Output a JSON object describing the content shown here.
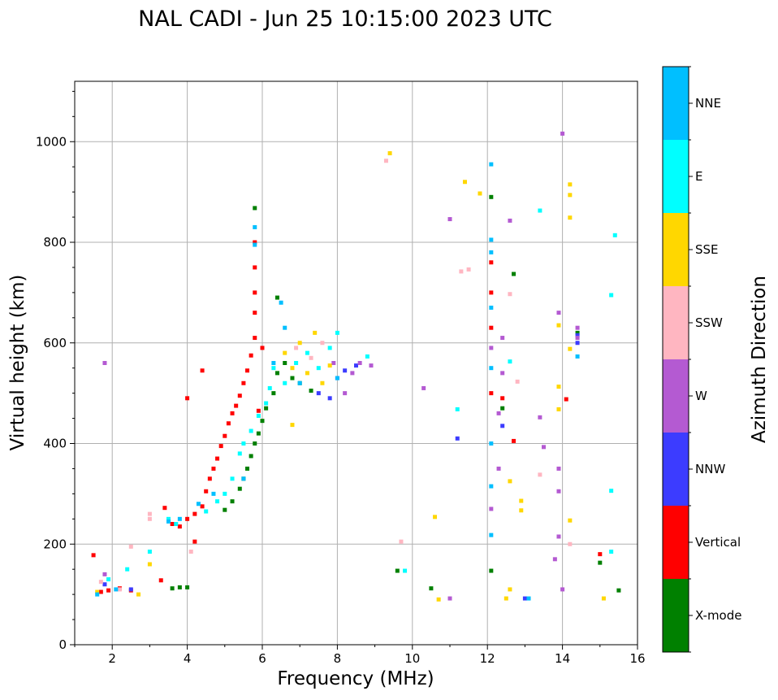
{
  "chart_data": {
    "type": "scatter",
    "title": "NAL CADI - Jun 25 10:15:00 2023 UTC",
    "xlabel": "Frequency (MHz)",
    "ylabel": "Virtual height (km)",
    "xlim": [
      1,
      16
    ],
    "ylim": [
      0,
      1120
    ],
    "x_ticks": [
      2,
      4,
      6,
      8,
      10,
      12,
      14,
      16
    ],
    "x_tick_labels": [
      "2",
      "4",
      "6",
      "8",
      "10",
      "12",
      "14",
      "16"
    ],
    "y_ticks": [
      0,
      200,
      400,
      600,
      800,
      1000
    ],
    "y_tick_labels": [
      "0",
      "200",
      "400",
      "600",
      "800",
      "1000"
    ],
    "grid": true,
    "colorbar": {
      "label": "Azimuth Direction",
      "categories": [
        "X-mode",
        "Vertical",
        "NNW",
        "W",
        "SSW",
        "SSE",
        "E",
        "NNE"
      ],
      "colors": [
        "#008000",
        "#ff0000",
        "#3c3cff",
        "#b45ad2",
        "#ffb6c1",
        "#ffd700",
        "#00ffff",
        "#00bfff"
      ]
    },
    "series": [
      {
        "name": "X-mode",
        "color": "#008000",
        "points": [
          [
            3.6,
            112
          ],
          [
            3.8,
            114
          ],
          [
            4.0,
            114
          ],
          [
            5.0,
            268
          ],
          [
            5.2,
            285
          ],
          [
            5.4,
            310
          ],
          [
            5.5,
            330
          ],
          [
            5.6,
            350
          ],
          [
            5.7,
            375
          ],
          [
            5.8,
            400
          ],
          [
            5.9,
            420
          ],
          [
            6.0,
            445
          ],
          [
            6.1,
            470
          ],
          [
            6.3,
            500
          ],
          [
            6.4,
            540
          ],
          [
            6.6,
            560
          ],
          [
            6.8,
            530
          ],
          [
            7.0,
            520
          ],
          [
            7.3,
            505
          ],
          [
            9.6,
            147
          ],
          [
            10.5,
            112
          ],
          [
            12.1,
            147
          ],
          [
            12.1,
            890
          ],
          [
            12.4,
            470
          ],
          [
            12.7,
            737
          ],
          [
            14.4,
            620
          ],
          [
            15.0,
            163
          ],
          [
            15.5,
            108
          ],
          [
            5.8,
            868
          ],
          [
            6.4,
            690
          ]
        ]
      },
      {
        "name": "Vertical",
        "color": "#ff0000",
        "points": [
          [
            1.5,
            178
          ],
          [
            1.7,
            105
          ],
          [
            1.9,
            108
          ],
          [
            2.2,
            112
          ],
          [
            2.5,
            108
          ],
          [
            3.3,
            128
          ],
          [
            3.4,
            272
          ],
          [
            3.6,
            240
          ],
          [
            3.8,
            235
          ],
          [
            4.0,
            250
          ],
          [
            4.2,
            260
          ],
          [
            4.4,
            275
          ],
          [
            4.5,
            305
          ],
          [
            4.6,
            330
          ],
          [
            4.7,
            350
          ],
          [
            4.8,
            370
          ],
          [
            4.9,
            395
          ],
          [
            5.0,
            415
          ],
          [
            5.1,
            440
          ],
          [
            5.2,
            460
          ],
          [
            5.3,
            475
          ],
          [
            5.4,
            495
          ],
          [
            5.5,
            520
          ],
          [
            5.6,
            545
          ],
          [
            5.7,
            575
          ],
          [
            5.8,
            610
          ],
          [
            5.8,
            660
          ],
          [
            5.8,
            700
          ],
          [
            5.8,
            750
          ],
          [
            5.8,
            800
          ],
          [
            4.0,
            490
          ],
          [
            4.4,
            545
          ],
          [
            6.0,
            590
          ],
          [
            12.1,
            500
          ],
          [
            12.1,
            630
          ],
          [
            12.1,
            700
          ],
          [
            12.1,
            760
          ],
          [
            12.4,
            490
          ],
          [
            12.7,
            405
          ],
          [
            14.1,
            488
          ],
          [
            15.0,
            180
          ],
          [
            4.2,
            205
          ],
          [
            5.9,
            465
          ]
        ]
      },
      {
        "name": "NNW",
        "color": "#3c3cff",
        "points": [
          [
            1.8,
            120
          ],
          [
            2.5,
            110
          ],
          [
            7.5,
            500
          ],
          [
            7.8,
            490
          ],
          [
            8.0,
            530
          ],
          [
            8.2,
            545
          ],
          [
            8.5,
            555
          ],
          [
            11.2,
            410
          ],
          [
            12.4,
            435
          ],
          [
            13.0,
            92
          ],
          [
            14.4,
            615
          ],
          [
            14.4,
            600
          ]
        ]
      },
      {
        "name": "W",
        "color": "#b45ad2",
        "points": [
          [
            1.8,
            140
          ],
          [
            1.8,
            560
          ],
          [
            7.9,
            560
          ],
          [
            8.2,
            500
          ],
          [
            8.4,
            540
          ],
          [
            8.6,
            560
          ],
          [
            8.9,
            555
          ],
          [
            10.3,
            510
          ],
          [
            11.0,
            92
          ],
          [
            11.0,
            846
          ],
          [
            12.1,
            270
          ],
          [
            12.1,
            590
          ],
          [
            12.3,
            350
          ],
          [
            12.3,
            460
          ],
          [
            12.4,
            540
          ],
          [
            12.4,
            610
          ],
          [
            12.6,
            843
          ],
          [
            13.4,
            452
          ],
          [
            13.5,
            393
          ],
          [
            13.8,
            170
          ],
          [
            13.9,
            305
          ],
          [
            13.9,
            350
          ],
          [
            13.9,
            215
          ],
          [
            13.9,
            660
          ],
          [
            14.0,
            110
          ],
          [
            14.0,
            1016
          ],
          [
            14.4,
            610
          ],
          [
            14.4,
            630
          ]
        ]
      },
      {
        "name": "SSW",
        "color": "#ffb6c1",
        "points": [
          [
            1.7,
            125
          ],
          [
            2.2,
            110
          ],
          [
            2.5,
            195
          ],
          [
            3.0,
            250
          ],
          [
            3.0,
            260
          ],
          [
            4.1,
            185
          ],
          [
            6.9,
            590
          ],
          [
            7.3,
            570
          ],
          [
            7.6,
            600
          ],
          [
            9.3,
            962
          ],
          [
            9.7,
            205
          ],
          [
            11.3,
            742
          ],
          [
            11.5,
            746
          ],
          [
            12.6,
            697
          ],
          [
            12.8,
            523
          ],
          [
            13.4,
            338
          ],
          [
            14.2,
            200
          ]
        ]
      },
      {
        "name": "SSE",
        "color": "#ffd700",
        "points": [
          [
            1.6,
            105
          ],
          [
            2.7,
            100
          ],
          [
            3.0,
            160
          ],
          [
            6.6,
            580
          ],
          [
            6.8,
            550
          ],
          [
            6.8,
            437
          ],
          [
            7.0,
            600
          ],
          [
            7.2,
            540
          ],
          [
            7.4,
            620
          ],
          [
            7.6,
            520
          ],
          [
            7.8,
            555
          ],
          [
            9.4,
            977
          ],
          [
            10.6,
            254
          ],
          [
            10.7,
            90
          ],
          [
            11.4,
            920
          ],
          [
            11.8,
            897
          ],
          [
            12.5,
            92
          ],
          [
            12.6,
            110
          ],
          [
            12.6,
            325
          ],
          [
            12.9,
            286
          ],
          [
            12.9,
            267
          ],
          [
            13.9,
            635
          ],
          [
            13.9,
            513
          ],
          [
            13.9,
            468
          ],
          [
            14.2,
            915
          ],
          [
            14.2,
            894
          ],
          [
            14.2,
            849
          ],
          [
            14.2,
            588
          ],
          [
            14.2,
            247
          ],
          [
            15.1,
            92
          ]
        ]
      },
      {
        "name": "E",
        "color": "#00ffff",
        "points": [
          [
            1.9,
            130
          ],
          [
            2.4,
            150
          ],
          [
            3.0,
            185
          ],
          [
            3.5,
            250
          ],
          [
            3.7,
            240
          ],
          [
            4.5,
            265
          ],
          [
            4.8,
            285
          ],
          [
            5.0,
            300
          ],
          [
            5.2,
            330
          ],
          [
            5.4,
            380
          ],
          [
            5.5,
            400
          ],
          [
            5.7,
            425
          ],
          [
            5.9,
            455
          ],
          [
            6.1,
            480
          ],
          [
            6.2,
            510
          ],
          [
            6.3,
            550
          ],
          [
            6.6,
            520
          ],
          [
            6.9,
            560
          ],
          [
            7.2,
            580
          ],
          [
            7.5,
            550
          ],
          [
            7.8,
            590
          ],
          [
            8.0,
            620
          ],
          [
            8.8,
            573
          ],
          [
            9.8,
            147
          ],
          [
            11.2,
            468
          ],
          [
            12.6,
            563
          ],
          [
            13.4,
            863
          ],
          [
            15.3,
            185
          ],
          [
            15.3,
            306
          ],
          [
            15.3,
            695
          ],
          [
            15.4,
            814
          ]
        ]
      },
      {
        "name": "NNE",
        "color": "#00bfff",
        "points": [
          [
            1.6,
            100
          ],
          [
            2.1,
            110
          ],
          [
            3.5,
            245
          ],
          [
            3.8,
            250
          ],
          [
            4.3,
            280
          ],
          [
            4.7,
            300
          ],
          [
            5.5,
            330
          ],
          [
            5.8,
            795
          ],
          [
            5.8,
            830
          ],
          [
            6.3,
            560
          ],
          [
            6.5,
            680
          ],
          [
            6.6,
            630
          ],
          [
            7.0,
            520
          ],
          [
            8.0,
            530
          ],
          [
            12.1,
            315
          ],
          [
            12.1,
            400
          ],
          [
            12.1,
            550
          ],
          [
            12.1,
            670
          ],
          [
            12.1,
            780
          ],
          [
            12.1,
            805
          ],
          [
            12.1,
            955
          ],
          [
            12.1,
            218
          ],
          [
            13.1,
            92
          ],
          [
            14.4,
            573
          ]
        ]
      }
    ]
  }
}
